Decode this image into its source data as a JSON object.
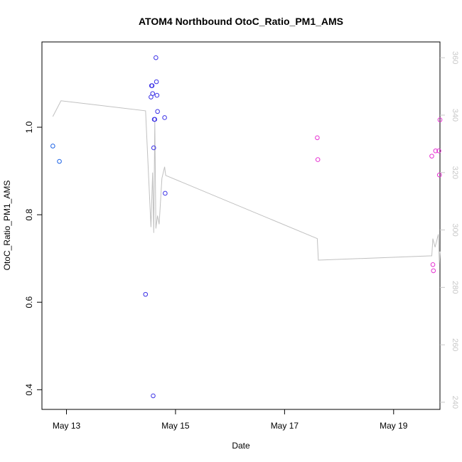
{
  "chart_data": {
    "type": "scatter",
    "title": "ATOM4 Northbound OtoC_Ratio_PM1_AMS",
    "xlabel": "Date",
    "ylabel": "OtoC_Ratio_PM1_AMS",
    "x_ticks": [
      "May 13",
      "May 15",
      "May 17",
      "May 19"
    ],
    "y_ticks": [
      "0.4",
      "0.6",
      "0.8",
      "1.0"
    ],
    "y2_ticks": [
      "240",
      "260",
      "280",
      "300",
      "320",
      "340",
      "360"
    ],
    "xlim_days": [
      12.55,
      19.85
    ],
    "ylim": [
      0.355,
      1.195
    ],
    "y2lim": [
      237.5,
      365.5
    ],
    "grid": false,
    "point_colors": [
      "#1e64e6",
      "#3c32e6",
      "#e632d2"
    ],
    "line_color": "#c0c0c0",
    "points": [
      {
        "x": 12.75,
        "y": 0.957,
        "c": 0
      },
      {
        "x": 12.87,
        "y": 0.922,
        "c": 0
      },
      {
        "x": 14.45,
        "y": 0.618,
        "c": 1
      },
      {
        "x": 14.55,
        "y": 1.069,
        "c": 1
      },
      {
        "x": 14.56,
        "y": 1.095,
        "c": 1
      },
      {
        "x": 14.57,
        "y": 1.095,
        "c": 1
      },
      {
        "x": 14.58,
        "y": 1.077,
        "c": 1
      },
      {
        "x": 14.59,
        "y": 0.386,
        "c": 1
      },
      {
        "x": 14.6,
        "y": 0.953,
        "c": 1
      },
      {
        "x": 14.61,
        "y": 1.018,
        "c": 1
      },
      {
        "x": 14.62,
        "y": 1.018,
        "c": 1
      },
      {
        "x": 14.64,
        "y": 1.159,
        "c": 1
      },
      {
        "x": 14.65,
        "y": 1.104,
        "c": 1
      },
      {
        "x": 14.66,
        "y": 1.073,
        "c": 1
      },
      {
        "x": 14.67,
        "y": 1.036,
        "c": 1
      },
      {
        "x": 14.8,
        "y": 1.022,
        "c": 1
      },
      {
        "x": 14.81,
        "y": 0.849,
        "c": 1
      },
      {
        "x": 17.6,
        "y": 0.976,
        "c": 2
      },
      {
        "x": 17.61,
        "y": 0.926,
        "c": 2
      },
      {
        "x": 19.7,
        "y": 0.934,
        "c": 2
      },
      {
        "x": 19.72,
        "y": 0.686,
        "c": 2
      },
      {
        "x": 19.73,
        "y": 0.672,
        "c": 2
      },
      {
        "x": 19.77,
        "y": 0.946,
        "c": 2
      },
      {
        "x": 19.83,
        "y": 0.946,
        "c": 2
      },
      {
        "x": 19.84,
        "y": 0.891,
        "c": 2
      },
      {
        "x": 19.85,
        "y": 1.017,
        "c": 2
      }
    ],
    "secondary_line": [
      [
        12.75,
        339.5
      ],
      [
        12.9,
        345.0
      ],
      [
        14.45,
        341.5
      ],
      [
        14.55,
        301.0
      ],
      [
        14.58,
        320.0
      ],
      [
        14.6,
        299.0
      ],
      [
        14.62,
        338.0
      ],
      [
        14.64,
        300.5
      ],
      [
        14.67,
        305.0
      ],
      [
        14.7,
        302.0
      ],
      [
        14.75,
        318.0
      ],
      [
        14.8,
        322.0
      ],
      [
        14.82,
        319.0
      ],
      [
        17.6,
        297.0
      ],
      [
        17.62,
        289.5
      ],
      [
        19.7,
        291.0
      ],
      [
        19.72,
        297.0
      ],
      [
        19.76,
        294.0
      ],
      [
        19.82,
        298.5
      ],
      [
        19.84,
        288.0
      ],
      [
        19.85,
        292.5
      ]
    ]
  }
}
